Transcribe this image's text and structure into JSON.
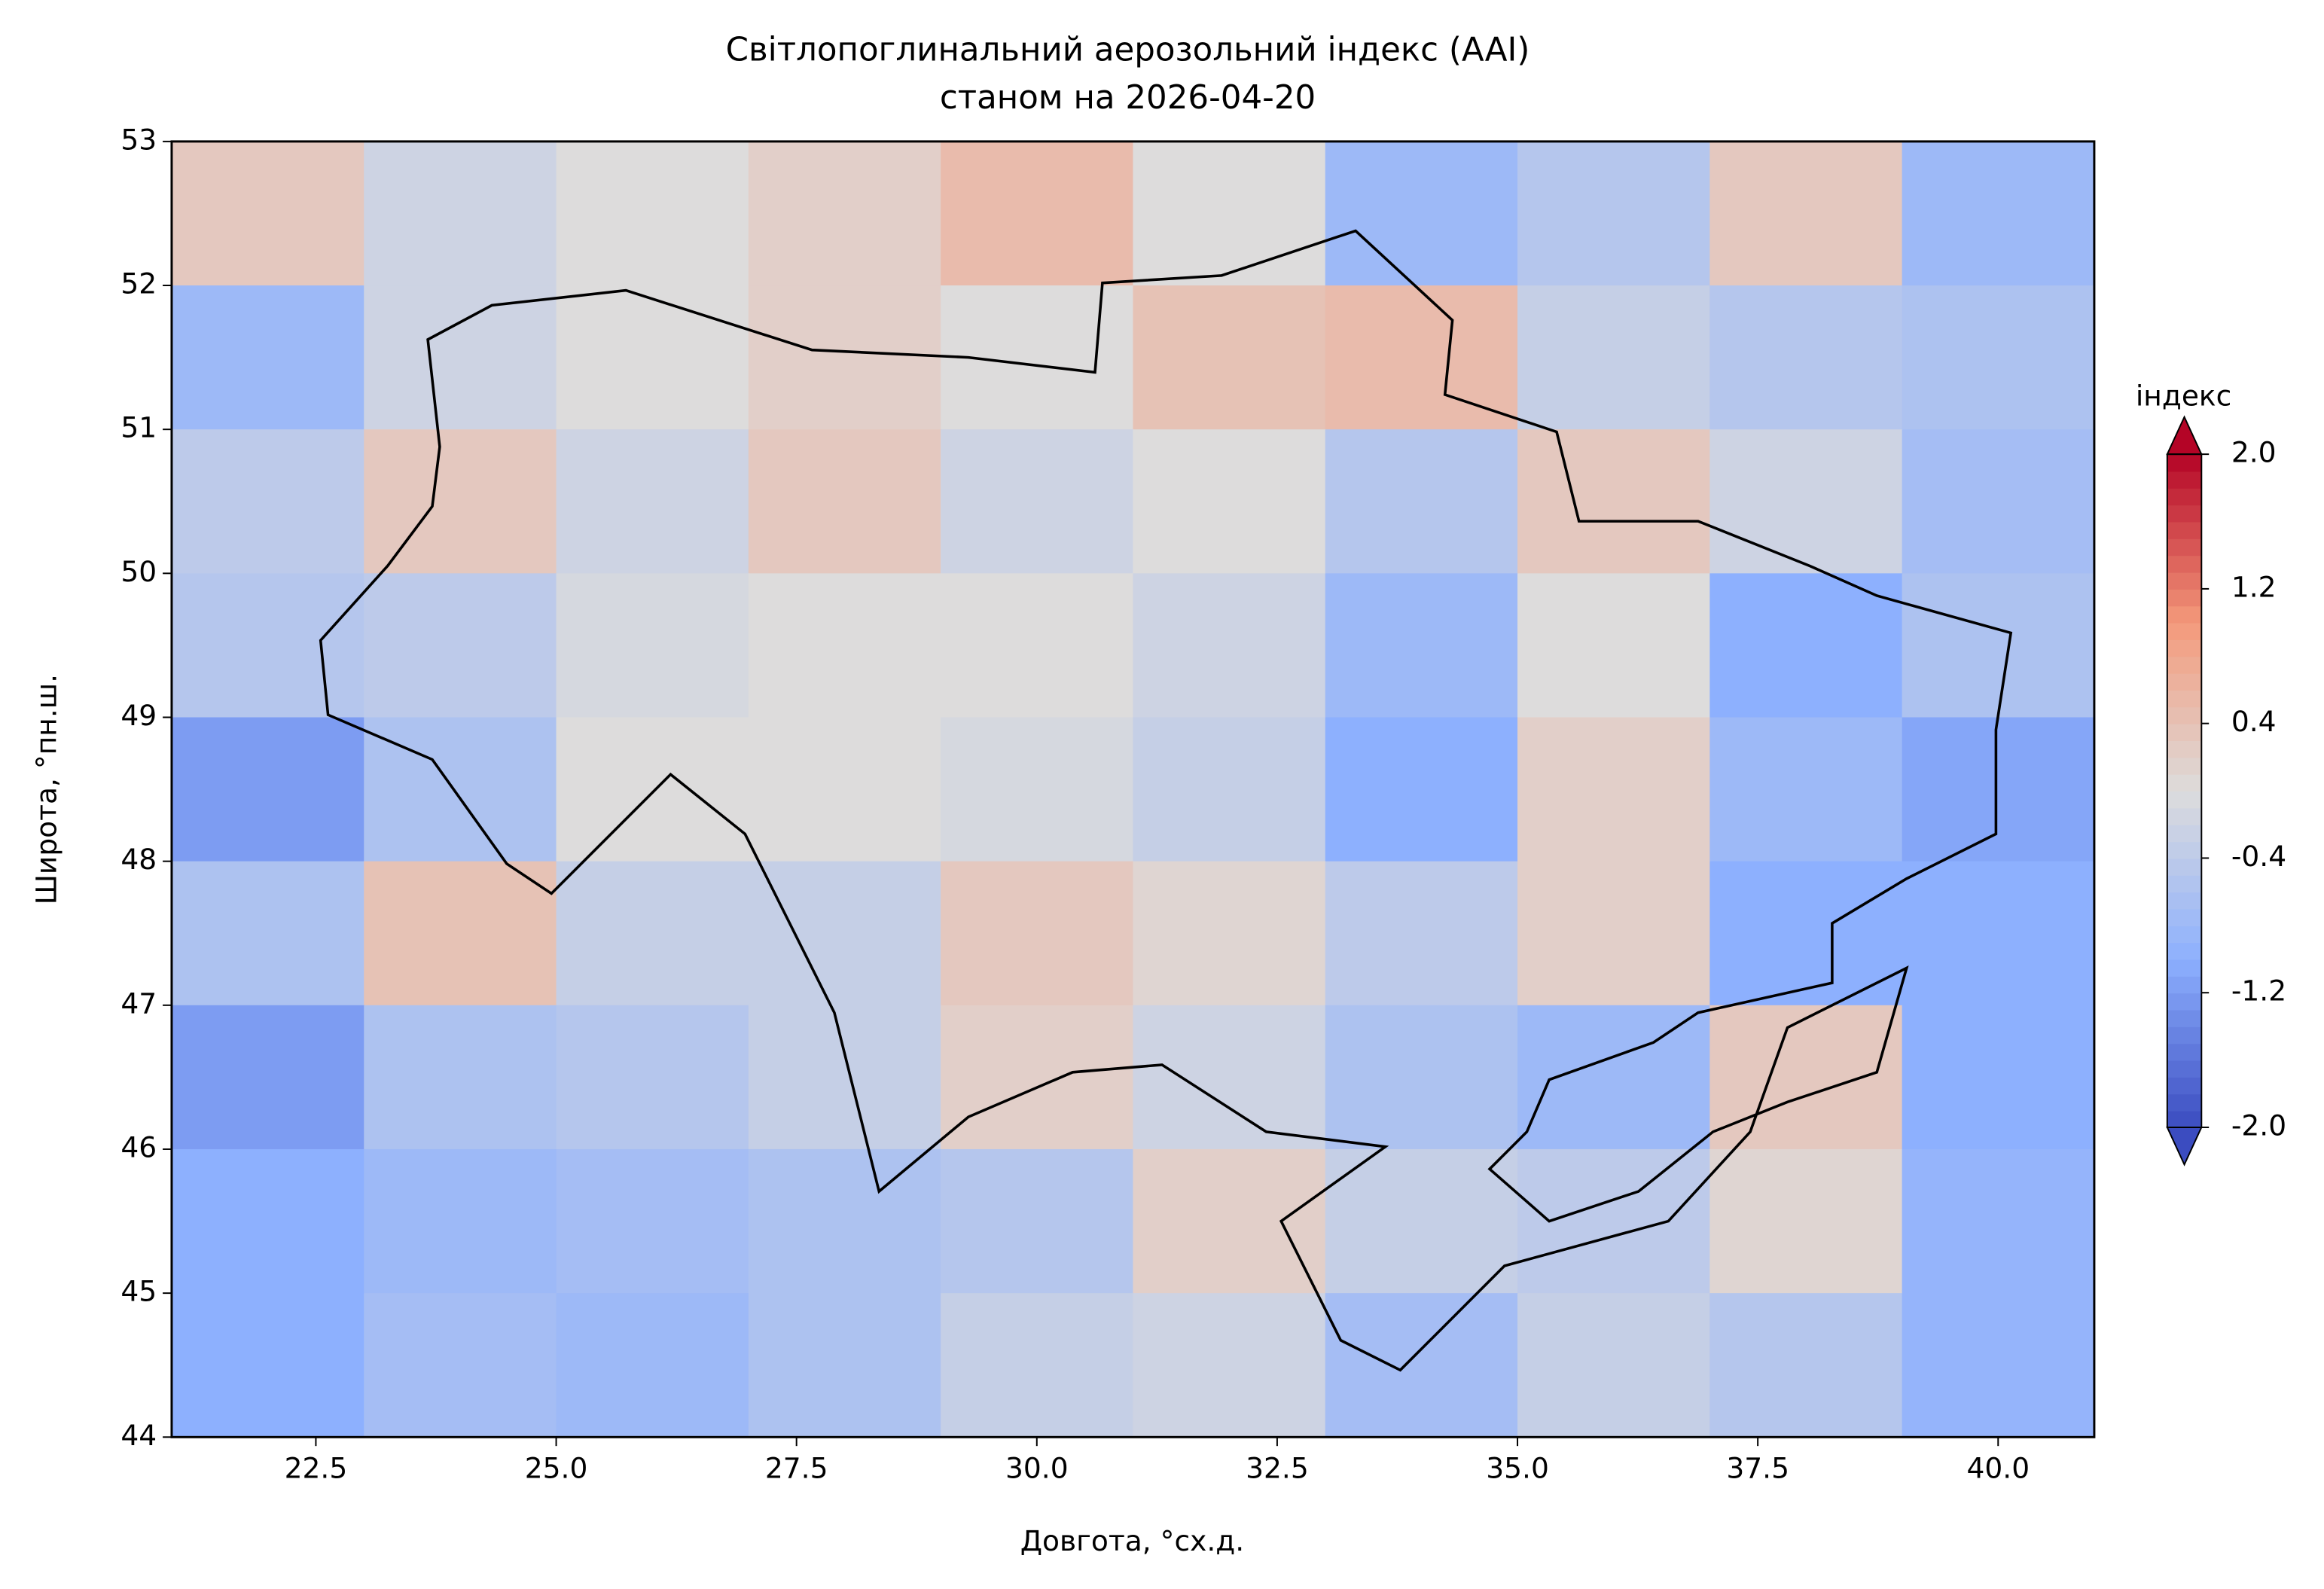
{
  "chart_data": {
    "type": "heatmap",
    "title": "Світлопоглинальний аерозольний індекс (AAI)",
    "subtitle": "станом на 2026-04-20",
    "xlabel": "Довгота, °сх.д.",
    "ylabel": "Широта, °пн.ш.",
    "xlim": [
      21,
      41
    ],
    "ylim": [
      44,
      53
    ],
    "xticks": [
      22.5,
      {
        "value": 25,
        "label": "25.0"
      },
      27.5,
      {
        "value": 30,
        "label": "30.0"
      },
      32.5,
      {
        "value": 35,
        "label": "35.0"
      },
      37.5,
      {
        "value": 40,
        "label": "40.0"
      }
    ],
    "yticks": [
      44,
      45,
      46,
      47,
      48,
      49,
      50,
      51,
      52,
      53
    ],
    "colorbar_label": "індекс",
    "clim": [
      -2,
      2
    ],
    "colorbar_ticks": [
      {
        "value": 2,
        "label": "2.0"
      },
      1.2,
      0.4,
      -0.4,
      -1.2,
      {
        "value": -2,
        "label": "-2.0"
      }
    ],
    "colormap": "coolwarm",
    "field": {
      "lon": [
        22,
        24,
        26,
        28,
        30,
        32,
        34,
        36,
        38,
        40
      ],
      "lat": [
        52.5,
        51.5,
        50.5,
        49.5,
        48.5,
        47.5,
        46.5,
        45.5,
        44.5
      ],
      "values": [
        [
          0.3,
          -0.2,
          0,
          0.2,
          0.5,
          0,
          -0.8,
          -0.5,
          0.3,
          -0.8
        ],
        [
          -0.8,
          -0.2,
          0,
          0.2,
          0,
          0.4,
          0.5,
          -0.3,
          -0.5,
          -0.6
        ],
        [
          -0.4,
          0.3,
          -0.2,
          0.3,
          -0.2,
          0,
          -0.5,
          0.3,
          -0.2,
          -0.7
        ],
        [
          -0.5,
          -0.4,
          -0.1,
          0,
          0,
          -0.2,
          -0.8,
          0,
          -1.0,
          -0.6
        ],
        [
          -1.2,
          -0.6,
          0,
          0,
          -0.1,
          -0.3,
          -1.0,
          0.2,
          -0.8,
          -1.1
        ],
        [
          -0.6,
          0.4,
          -0.3,
          -0.3,
          0.3,
          0.1,
          -0.4,
          0.2,
          -1.0,
          -1.0
        ],
        [
          -1.2,
          -0.6,
          -0.5,
          -0.3,
          0.2,
          -0.2,
          -0.6,
          -0.8,
          0.3,
          -1.0
        ],
        [
          -1.0,
          -0.8,
          -0.7,
          -0.6,
          -0.5,
          0.2,
          -0.3,
          -0.4,
          0.1,
          -0.9
        ],
        [
          -1.0,
          -0.7,
          -0.8,
          -0.6,
          -0.3,
          -0.2,
          -0.7,
          -0.3,
          -0.5,
          -0.9
        ]
      ]
    }
  }
}
